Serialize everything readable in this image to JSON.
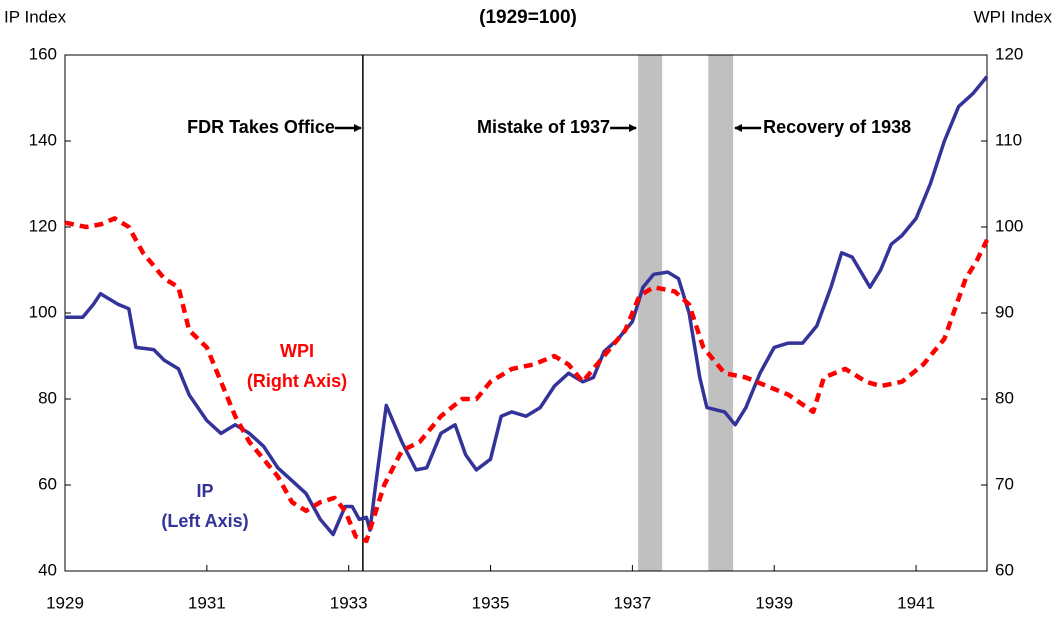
{
  "chart_data": {
    "type": "line",
    "title": "(1929=100)",
    "y_label": "IP Index",
    "y2_label": "WPI Index",
    "xlim": [
      1929,
      1942
    ],
    "xticks": [
      1929,
      1931,
      1933,
      1935,
      1937,
      1939,
      1941
    ],
    "ylim": [
      40,
      160
    ],
    "yticks": [
      40,
      60,
      80,
      100,
      120,
      140,
      160
    ],
    "y2lim": [
      60,
      120
    ],
    "y2ticks": [
      60,
      70,
      80,
      90,
      100,
      110,
      120
    ],
    "vertical_line": 1933.2,
    "shaded_periods": [
      [
        1937.08,
        1937.42
      ],
      [
        1938.07,
        1938.42
      ]
    ],
    "annotations": [
      {
        "text": "FDR Takes Office",
        "x": 1933.2,
        "side": "left"
      },
      {
        "text": "Mistake of 1937",
        "x": 1937.08,
        "side": "left"
      },
      {
        "text": "Recovery of 1938",
        "x": 1938.42,
        "side": "right"
      }
    ],
    "series": [
      {
        "name": "IP",
        "axis_note": "(Left Axis)",
        "color": "#333399",
        "axis": "y",
        "x": [
          1929.0,
          1929.25,
          1929.4,
          1929.5,
          1929.75,
          1929.9,
          1930.0,
          1930.25,
          1930.4,
          1930.6,
          1930.75,
          1931.0,
          1931.2,
          1931.4,
          1931.6,
          1931.8,
          1932.0,
          1932.2,
          1932.4,
          1932.6,
          1932.78,
          1932.95,
          1933.05,
          1933.15,
          1933.25,
          1933.3,
          1933.38,
          1933.53,
          1933.75,
          1933.95,
          1934.1,
          1934.3,
          1934.5,
          1934.65,
          1934.8,
          1935.0,
          1935.15,
          1935.3,
          1935.5,
          1935.7,
          1935.9,
          1936.1,
          1936.3,
          1936.45,
          1936.6,
          1936.8,
          1937.0,
          1937.15,
          1937.3,
          1937.5,
          1937.65,
          1937.8,
          1937.95,
          1938.05,
          1938.3,
          1938.45,
          1938.6,
          1938.8,
          1939.0,
          1939.2,
          1939.4,
          1939.6,
          1939.8,
          1939.95,
          1940.1,
          1940.35,
          1940.5,
          1940.65,
          1940.8,
          1941.0,
          1941.2,
          1941.4,
          1941.6,
          1941.8,
          1942.0
        ],
        "values": [
          99,
          99,
          102,
          104.5,
          102,
          101,
          92,
          91.5,
          89,
          87,
          81,
          75,
          72,
          74,
          72,
          69,
          64,
          61,
          58,
          52,
          48.5,
          55,
          55,
          52,
          52.5,
          49.5,
          60,
          78.5,
          70,
          63.5,
          64,
          72,
          74,
          67,
          63.5,
          66,
          76,
          77,
          76,
          78,
          83,
          86,
          84,
          85,
          91,
          94,
          98,
          106,
          109,
          109.5,
          108,
          100,
          85,
          78,
          77,
          74,
          78,
          86,
          92,
          93,
          93,
          97,
          106,
          114,
          113,
          106,
          110,
          116,
          118,
          122,
          130,
          140,
          148,
          151,
          155
        ]
      },
      {
        "name": "WPI",
        "axis_note": "(Right Axis)",
        "color": "#ff0000",
        "axis": "y2",
        "dashed": true,
        "x": [
          1929.0,
          1929.3,
          1929.5,
          1929.7,
          1929.9,
          1930.1,
          1930.4,
          1930.6,
          1930.75,
          1931.0,
          1931.2,
          1931.4,
          1931.6,
          1931.8,
          1932.0,
          1932.2,
          1932.4,
          1932.6,
          1932.8,
          1932.95,
          1933.1,
          1933.25,
          1933.5,
          1933.75,
          1934.0,
          1934.3,
          1934.6,
          1934.8,
          1935.0,
          1935.3,
          1935.6,
          1935.9,
          1936.1,
          1936.3,
          1936.6,
          1936.9,
          1937.1,
          1937.3,
          1937.6,
          1937.8,
          1938.0,
          1938.3,
          1938.6,
          1938.9,
          1939.2,
          1939.55,
          1939.7,
          1940.0,
          1940.3,
          1940.5,
          1940.8,
          1941.1,
          1941.4,
          1941.7,
          1941.85,
          1942.0
        ],
        "values": [
          100.5,
          100,
          100.3,
          101,
          100,
          97,
          94,
          93,
          88,
          86,
          82,
          78,
          75,
          73,
          71,
          68,
          67,
          68,
          68.5,
          67,
          64,
          63.5,
          70,
          74,
          75,
          78,
          80,
          80,
          82,
          83.5,
          84,
          85,
          84,
          82,
          85,
          88,
          92,
          93,
          92.5,
          91,
          86,
          83,
          82.5,
          81.5,
          80.5,
          78.5,
          82.5,
          83.5,
          82,
          81.5,
          82,
          84,
          87,
          94,
          96,
          98.5
        ]
      }
    ]
  }
}
